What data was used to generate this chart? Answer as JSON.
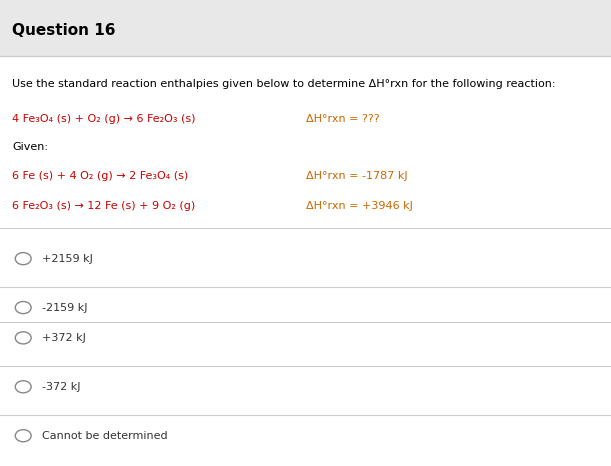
{
  "title": "Question 16",
  "background_color": "#f0f0f0",
  "content_bg": "#ffffff",
  "intro_text": "Use the standard reaction enthalpies given below to determine ΔH°rxn for the following reaction:",
  "target_reaction": "4 Fe₃O₄ (s) + O₂ (g) → 6 Fe₂O₃ (s)",
  "target_dh": "ΔH°rxn = ???",
  "given_label": "Given:",
  "reaction1": "6 Fe (s) + 4 O₂ (g) → 2 Fe₃O₄ (s)",
  "reaction1_dh": "ΔH°rxn = -1787 kJ",
  "reaction2": "6 Fe₂O₃ (s) → 12 Fe (s) + 9 O₂ (g)",
  "reaction2_dh": "ΔH°rxn = +3946 kJ",
  "options": [
    "+2159 kJ",
    "-2159 kJ",
    "+372 kJ",
    "-372 kJ",
    "Cannot be determined"
  ],
  "reaction_color": "#cc0000",
  "dh_color": "#cc6600",
  "text_color": "#000000",
  "option_color": "#333333",
  "separator_color": "#cccccc"
}
